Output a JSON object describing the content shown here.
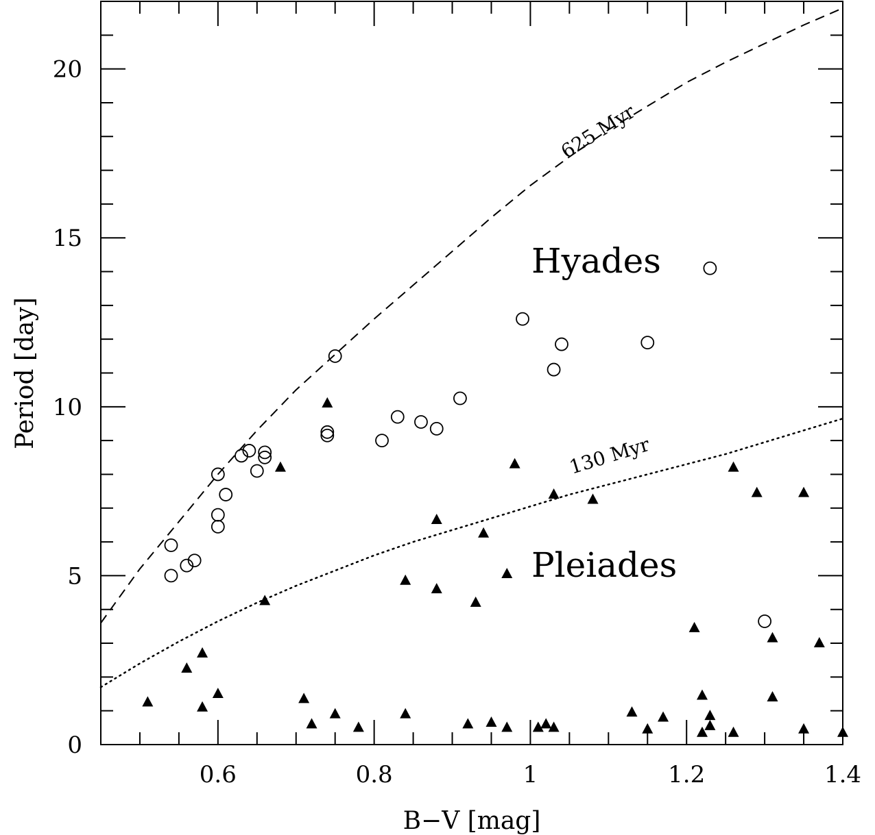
{
  "chart_data": {
    "type": "scatter",
    "xlabel": "B−V [mag]",
    "ylabel": "Period [day]",
    "xlim": [
      0.45,
      1.4
    ],
    "ylim": [
      0,
      22
    ],
    "x_ticks": [
      "0.6",
      "0.8",
      "1",
      "1.2",
      "1.4"
    ],
    "y_ticks": [
      "0",
      "5",
      "10",
      "15",
      "20"
    ],
    "grid": false,
    "series": [
      {
        "name": "Hyades",
        "marker": "open-circle",
        "points": [
          [
            0.54,
            5.0
          ],
          [
            0.54,
            5.9
          ],
          [
            0.56,
            5.3
          ],
          [
            0.57,
            5.45
          ],
          [
            0.6,
            6.45
          ],
          [
            0.6,
            6.8
          ],
          [
            0.6,
            8.0
          ],
          [
            0.61,
            7.4
          ],
          [
            0.63,
            8.55
          ],
          [
            0.64,
            8.7
          ],
          [
            0.65,
            8.1
          ],
          [
            0.66,
            8.5
          ],
          [
            0.66,
            8.65
          ],
          [
            0.74,
            9.15
          ],
          [
            0.74,
            9.25
          ],
          [
            0.75,
            11.5
          ],
          [
            0.81,
            9.0
          ],
          [
            0.83,
            9.7
          ],
          [
            0.86,
            9.55
          ],
          [
            0.88,
            9.35
          ],
          [
            0.91,
            10.25
          ],
          [
            0.99,
            12.6
          ],
          [
            1.03,
            11.1
          ],
          [
            1.04,
            11.85
          ],
          [
            1.15,
            11.9
          ],
          [
            1.23,
            14.1
          ],
          [
            1.3,
            3.65
          ]
        ]
      },
      {
        "name": "Pleiades",
        "marker": "filled-triangle",
        "points": [
          [
            0.51,
            1.25
          ],
          [
            0.56,
            2.25
          ],
          [
            0.58,
            2.7
          ],
          [
            0.58,
            1.1
          ],
          [
            0.6,
            1.5
          ],
          [
            0.66,
            4.25
          ],
          [
            0.68,
            8.2
          ],
          [
            0.71,
            1.35
          ],
          [
            0.72,
            0.6
          ],
          [
            0.74,
            10.1
          ],
          [
            0.75,
            0.9
          ],
          [
            0.78,
            0.5
          ],
          [
            0.84,
            4.85
          ],
          [
            0.84,
            0.9
          ],
          [
            0.88,
            6.65
          ],
          [
            0.88,
            4.6
          ],
          [
            0.92,
            0.6
          ],
          [
            0.93,
            4.2
          ],
          [
            0.94,
            6.25
          ],
          [
            0.95,
            0.65
          ],
          [
            0.97,
            5.05
          ],
          [
            0.97,
            0.5
          ],
          [
            0.98,
            8.3
          ],
          [
            1.01,
            0.5
          ],
          [
            1.02,
            0.6
          ],
          [
            1.03,
            0.5
          ],
          [
            1.03,
            7.4
          ],
          [
            1.08,
            7.25
          ],
          [
            1.13,
            0.95
          ],
          [
            1.15,
            0.45
          ],
          [
            1.17,
            0.8
          ],
          [
            1.21,
            3.45
          ],
          [
            1.22,
            1.45
          ],
          [
            1.22,
            0.35
          ],
          [
            1.23,
            0.85
          ],
          [
            1.23,
            0.55
          ],
          [
            1.26,
            8.2
          ],
          [
            1.26,
            0.35
          ],
          [
            1.29,
            7.45
          ],
          [
            1.31,
            3.15
          ],
          [
            1.31,
            1.4
          ],
          [
            1.35,
            7.45
          ],
          [
            1.35,
            0.45
          ],
          [
            1.37,
            3.0
          ],
          [
            1.4,
            0.35
          ]
        ]
      }
    ],
    "curves": [
      {
        "name": "625 Myr",
        "style": "dashed",
        "points": [
          [
            0.45,
            3.6
          ],
          [
            0.5,
            5.2
          ],
          [
            0.55,
            6.6
          ],
          [
            0.6,
            8.0
          ],
          [
            0.65,
            9.3
          ],
          [
            0.7,
            10.5
          ],
          [
            0.75,
            11.55
          ],
          [
            0.8,
            12.6
          ],
          [
            0.85,
            13.6
          ],
          [
            0.9,
            14.6
          ],
          [
            0.95,
            15.6
          ],
          [
            1.0,
            16.55
          ],
          [
            1.05,
            17.4
          ],
          [
            1.1,
            18.2
          ],
          [
            1.15,
            18.9
          ],
          [
            1.2,
            19.6
          ],
          [
            1.25,
            20.2
          ],
          [
            1.3,
            20.75
          ],
          [
            1.35,
            21.3
          ],
          [
            1.4,
            21.8
          ]
        ]
      },
      {
        "name": "130 Myr",
        "style": "dotted",
        "points": [
          [
            0.45,
            1.7
          ],
          [
            0.5,
            2.4
          ],
          [
            0.55,
            3.05
          ],
          [
            0.6,
            3.65
          ],
          [
            0.65,
            4.2
          ],
          [
            0.7,
            4.7
          ],
          [
            0.75,
            5.15
          ],
          [
            0.8,
            5.6
          ],
          [
            0.85,
            6.0
          ],
          [
            0.9,
            6.35
          ],
          [
            0.95,
            6.7
          ],
          [
            1.0,
            7.05
          ],
          [
            1.05,
            7.4
          ],
          [
            1.1,
            7.7
          ],
          [
            1.15,
            8.0
          ],
          [
            1.2,
            8.3
          ],
          [
            1.25,
            8.6
          ],
          [
            1.3,
            8.95
          ],
          [
            1.35,
            9.3
          ],
          [
            1.4,
            9.65
          ]
        ]
      }
    ],
    "annotations": {
      "hyades": "Hyades",
      "pleiades": "Pleiades",
      "curve_625": "625 Myr",
      "curve_130": "130 Myr"
    }
  }
}
